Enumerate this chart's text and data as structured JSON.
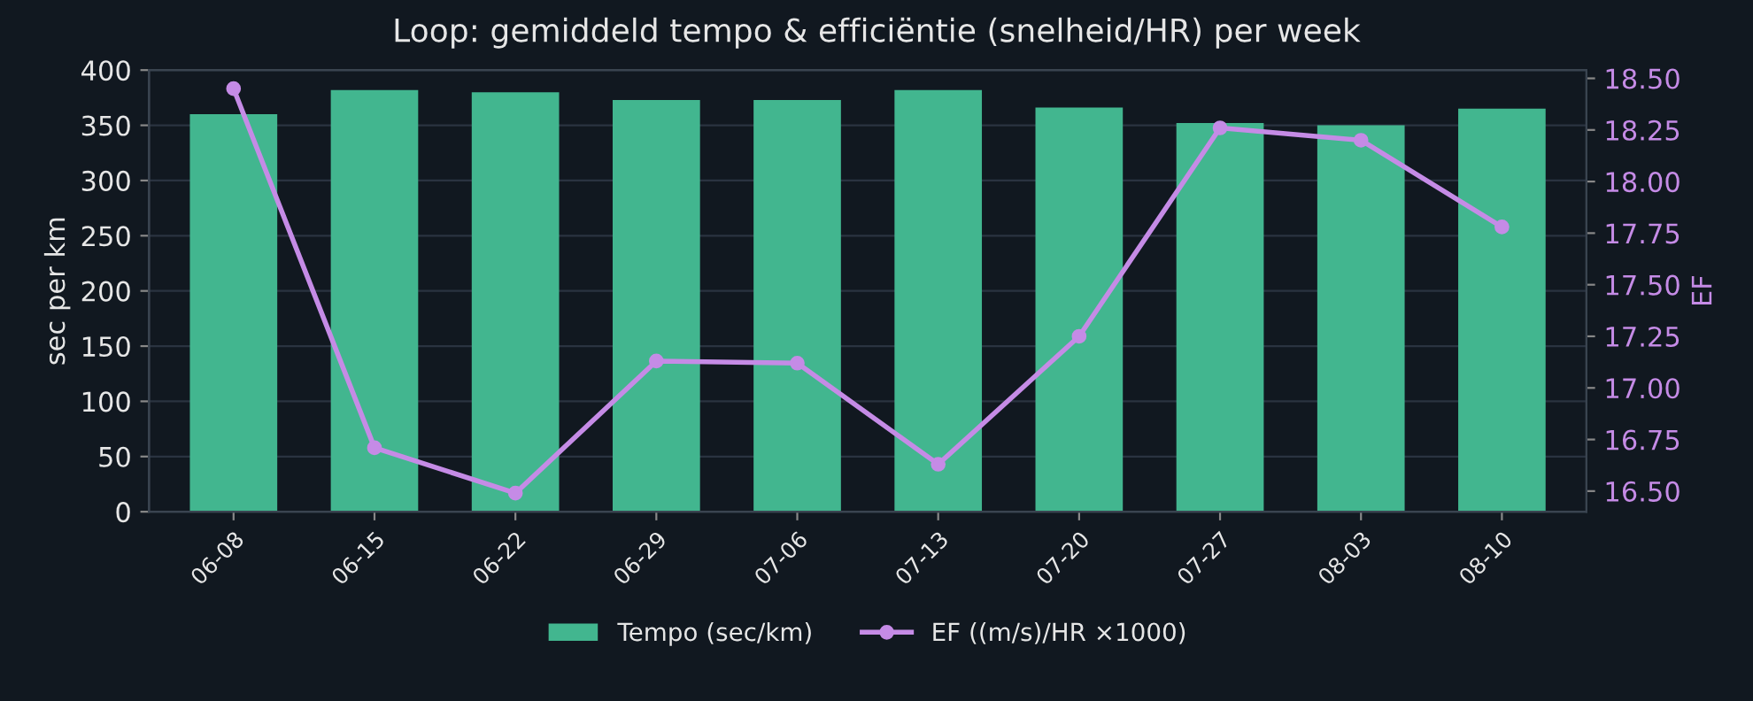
{
  "chart_data": {
    "type": "bar",
    "title": "Loop: gemiddeld tempo & efficiëntie (snelheid/HR) per week",
    "categories": [
      "06-08",
      "06-15",
      "06-22",
      "06-29",
      "07-06",
      "07-13",
      "07-20",
      "07-27",
      "08-03",
      "08-10"
    ],
    "series": [
      {
        "name": "Tempo (sec/km)",
        "color": "#42b68f",
        "values": [
          360,
          382,
          380,
          373,
          373,
          382,
          366,
          352,
          350,
          365
        ]
      },
      {
        "name": "EF ((m/s)/HR ×1000)",
        "type": "line",
        "axis": "y2",
        "color": "#c58be6",
        "values": [
          18.45,
          16.71,
          16.49,
          17.13,
          17.12,
          16.63,
          17.25,
          18.26,
          18.2,
          17.78
        ]
      }
    ],
    "ylabel": "sec per km",
    "y2label": "EF",
    "ylim": [
      0,
      400
    ],
    "yticks": [
      0,
      50,
      100,
      150,
      200,
      250,
      300,
      350,
      400
    ],
    "y2lim": [
      16.4,
      18.54
    ],
    "y2ticks": [
      {
        "value": 16.5,
        "label": "16.50"
      },
      {
        "value": 16.75,
        "label": "16.75"
      },
      {
        "value": 17.0,
        "label": "17.00"
      },
      {
        "value": 17.25,
        "label": "17.25"
      },
      {
        "value": 17.5,
        "label": "17.50"
      },
      {
        "value": 17.75,
        "label": "17.75"
      },
      {
        "value": 18.0,
        "label": "18.00"
      },
      {
        "value": 18.25,
        "label": "18.25"
      },
      {
        "value": 18.5,
        "label": "18.50"
      }
    ],
    "grid": "y",
    "legend": "bottom",
    "marker": "circle",
    "line_style": "solid"
  }
}
